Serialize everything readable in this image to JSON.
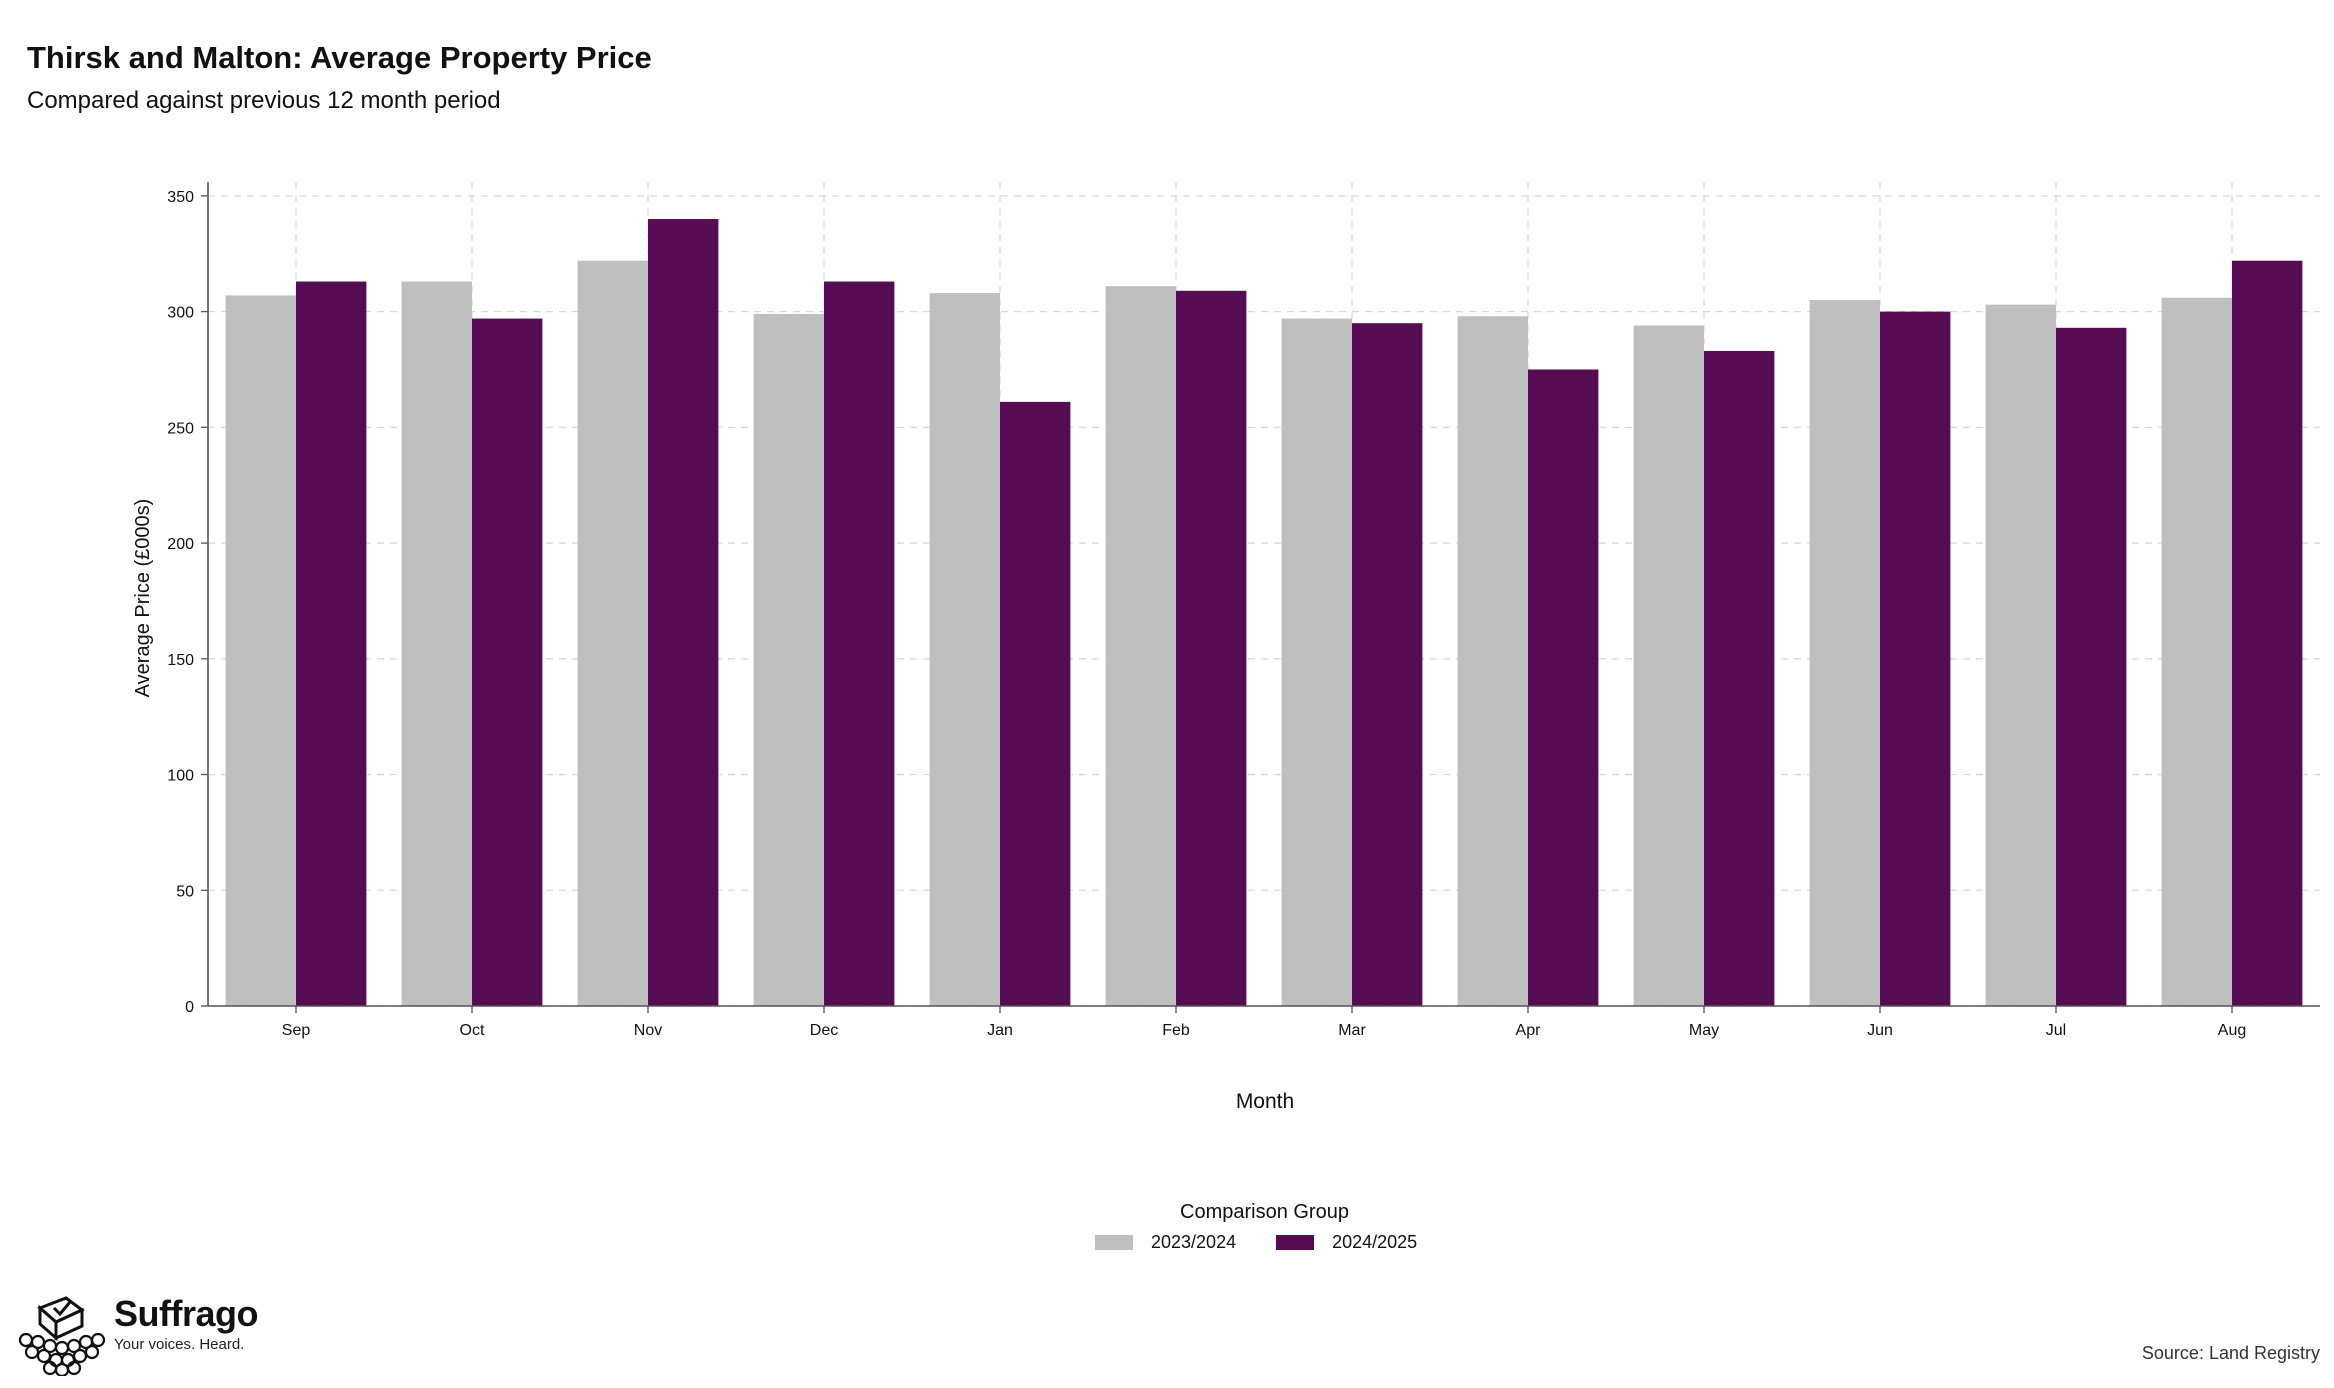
{
  "header": {
    "title": "Thirsk and Malton: Average Property Price",
    "subtitle": "Compared against previous 12 month period"
  },
  "chart_data": {
    "type": "bar",
    "title": "Thirsk and Malton: Average Property Price",
    "subtitle": "Compared against previous 12 month period",
    "xlabel": "Month",
    "ylabel": "Average Price (£000s)",
    "ylim": [
      0,
      356
    ],
    "yticks": [
      0,
      50,
      100,
      150,
      200,
      250,
      300,
      350
    ],
    "grid": true,
    "legend_position": "bottom",
    "legend_title": "Comparison Group",
    "categories": [
      "Sep",
      "Oct",
      "Nov",
      "Dec",
      "Jan",
      "Feb",
      "Mar",
      "Apr",
      "May",
      "Jun",
      "Jul",
      "Aug"
    ],
    "series": [
      {
        "name": "2023/2024",
        "color": "#bfbfbf",
        "values": [
          307,
          313,
          322,
          299,
          308,
          311,
          297,
          298,
          294,
          305,
          303,
          306
        ]
      },
      {
        "name": "2024/2025",
        "color": "#560c50",
        "values": [
          313,
          297,
          340,
          313,
          261,
          309,
          295,
          275,
          283,
          300,
          293,
          322
        ]
      }
    ]
  },
  "legend": {
    "title": "Comparison Group",
    "items": [
      {
        "label": "2023/2024",
        "color": "#bfbfbf"
      },
      {
        "label": "2024/2025",
        "color": "#560c50"
      }
    ]
  },
  "brand": {
    "name": "Suffrago",
    "tagline": "Your voices. Heard.",
    "icon": "ballot-box-icon"
  },
  "footer": {
    "source": "Source: Land Registry"
  }
}
